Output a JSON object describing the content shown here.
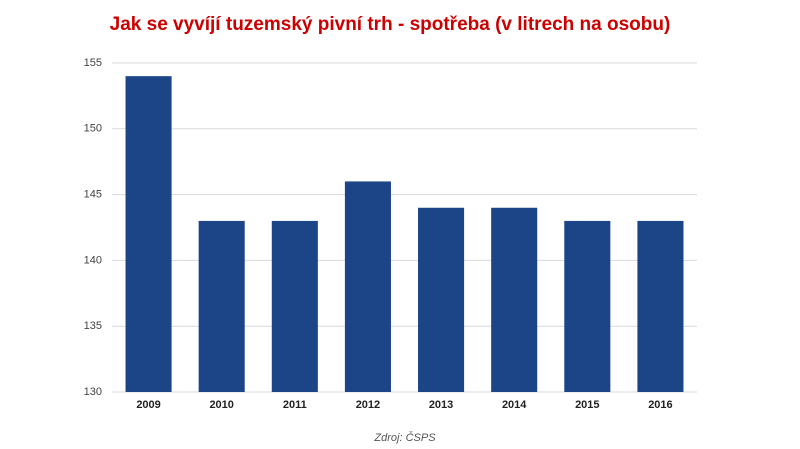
{
  "chart_data": {
    "type": "bar",
    "title": "Jak se vyvíjí tuzemský pivní trh - spotřeba (v litrech na osobu)",
    "categories": [
      "2009",
      "2010",
      "2011",
      "2012",
      "2013",
      "2014",
      "2015",
      "2016"
    ],
    "values": [
      154,
      143,
      143,
      146,
      144,
      144,
      143,
      143
    ],
    "color": "#1c4587",
    "ylim": [
      130,
      155
    ],
    "yticks": [
      130,
      135,
      140,
      145,
      150,
      155
    ],
    "grid": true,
    "source": "Zdroj: ČSPS"
  }
}
